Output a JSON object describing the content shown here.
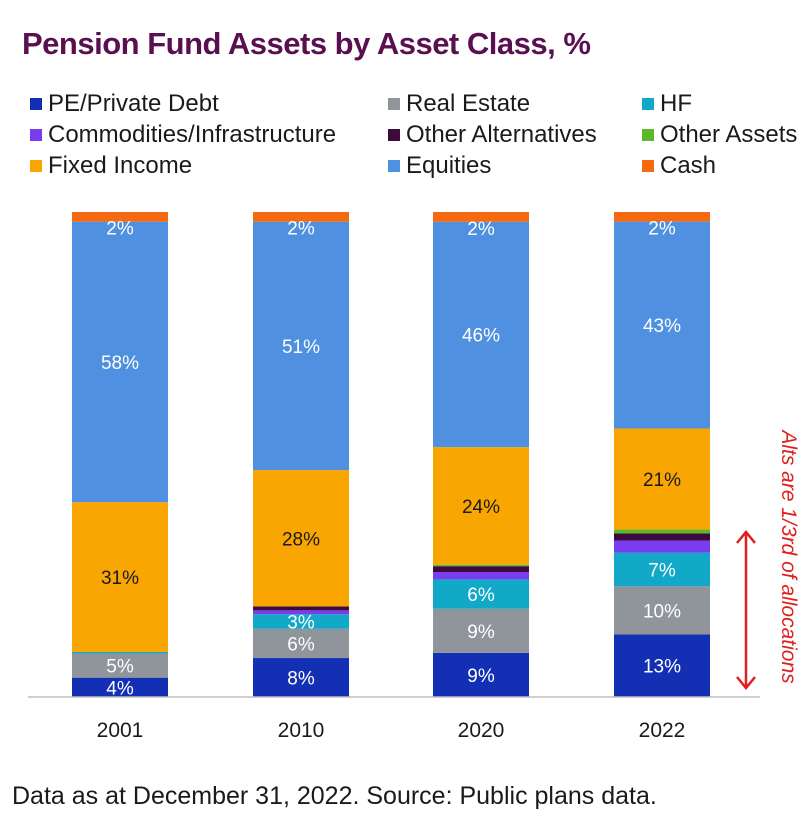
{
  "title": "Pension Fund Assets by Asset Class, %",
  "footnote": "Data as at December 31, 2022. Source: Public plans data.",
  "annotation": "Alts are 1/3rd of allocations",
  "colors": {
    "pe": "#1330b5",
    "real_estate": "#8f959b",
    "hf": "#12a8c8",
    "commodities": "#7a3cf0",
    "other_alt": "#3c0a3c",
    "other_assets": "#5ab82a",
    "fixed_income": "#f9a602",
    "equities": "#5090e0",
    "cash": "#f56a10",
    "annotation": "#e02020"
  },
  "chart_data": {
    "type": "bar",
    "stacked": true,
    "title": "Pension Fund Assets by Asset Class, %",
    "categories": [
      "2001",
      "2010",
      "2020",
      "2022"
    ],
    "legend_position": "top",
    "grid": false,
    "ylim": [
      0,
      100
    ],
    "series": [
      {
        "name": "PE/Private Debt",
        "key": "pe",
        "values": [
          4,
          8,
          9,
          13
        ],
        "labels": [
          "4%",
          "8%",
          "9%",
          "13%"
        ]
      },
      {
        "name": "Real Estate",
        "key": "real_estate",
        "values": [
          5,
          6,
          9,
          10
        ],
        "labels": [
          "5%",
          "6%",
          "9%",
          "10%"
        ]
      },
      {
        "name": "HF",
        "key": "hf",
        "values": [
          0.3,
          3,
          6,
          7
        ],
        "labels": [
          "",
          "3%",
          "6%",
          "7%"
        ]
      },
      {
        "name": "Commodities/Infrastructure",
        "key": "commodities",
        "values": [
          0,
          0.8,
          1.5,
          2.5
        ],
        "labels": [
          "",
          "",
          "",
          ""
        ]
      },
      {
        "name": "Other Alternatives",
        "key": "other_alt",
        "values": [
          0,
          0.8,
          1.2,
          1.5
        ],
        "labels": [
          "",
          "",
          "",
          ""
        ]
      },
      {
        "name": "Other Assets",
        "key": "other_assets",
        "values": [
          0,
          0,
          0.3,
          0.8
        ],
        "labels": [
          "",
          "",
          "",
          ""
        ]
      },
      {
        "name": "Fixed Income",
        "key": "fixed_income",
        "values": [
          31,
          28,
          24,
          21
        ],
        "labels": [
          "31%",
          "28%",
          "24%",
          "21%"
        ]
      },
      {
        "name": "Equities",
        "key": "equities",
        "values": [
          58,
          51,
          46,
          43
        ],
        "labels": [
          "58%",
          "51%",
          "46%",
          "43%"
        ]
      },
      {
        "name": "Cash",
        "key": "cash",
        "values": [
          2,
          2,
          2,
          2
        ],
        "labels": [
          "2%",
          "2%",
          "2%",
          "2%"
        ]
      }
    ]
  }
}
